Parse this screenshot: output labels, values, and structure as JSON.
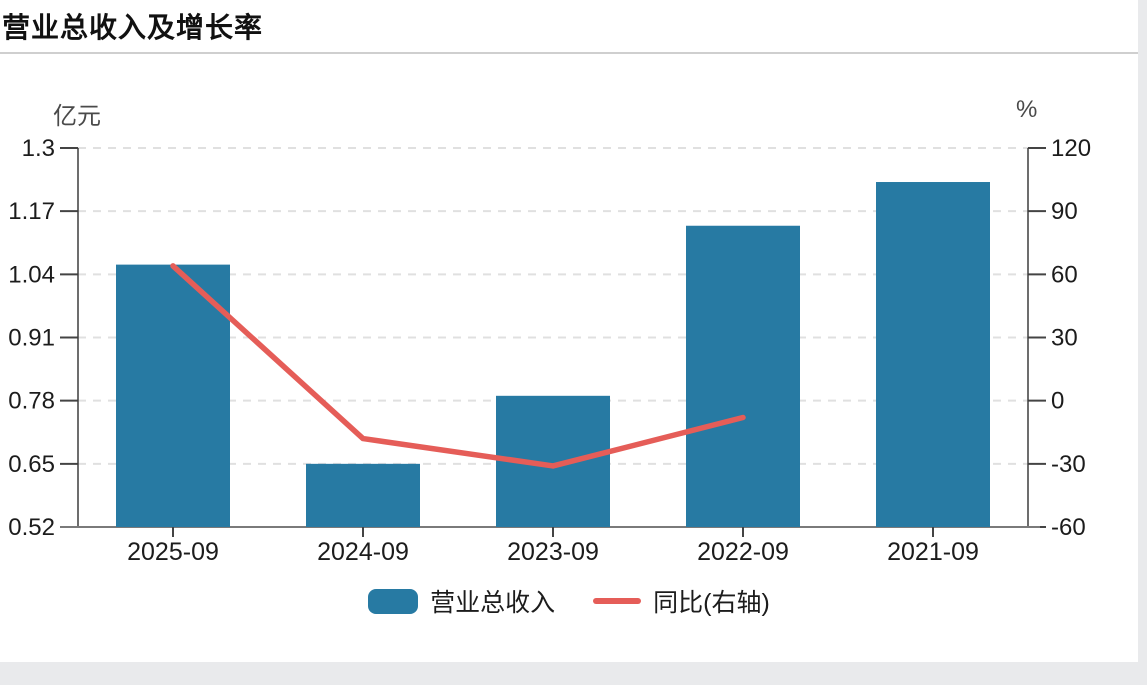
{
  "title": "营业总收入及增长率",
  "chart_data": {
    "type": "bar",
    "subtype": "bar+line dual axis",
    "categories": [
      "2025-09",
      "2024-09",
      "2023-09",
      "2022-09",
      "2021-09"
    ],
    "series": [
      {
        "name": "营业总收入",
        "type": "bar",
        "axis": "left",
        "unit": "亿元",
        "values": [
          1.06,
          0.65,
          0.79,
          1.14,
          1.23
        ],
        "color": "#277aa3"
      },
      {
        "name": "同比(右轴)",
        "type": "line",
        "axis": "right",
        "unit": "%",
        "values": [
          64,
          -18,
          -31,
          -8,
          null
        ],
        "color": "#e55d58"
      }
    ],
    "left_axis": {
      "unit": "亿元",
      "min": 0.52,
      "max": 1.3,
      "tick_labels": [
        "1.3",
        "1.17",
        "1.04",
        "0.91",
        "0.78",
        "0.65",
        "0.52"
      ]
    },
    "right_axis": {
      "unit": "%",
      "min": -60,
      "max": 120,
      "tick_labels": [
        "120",
        "90",
        "60",
        "30",
        "0",
        "-30",
        "-60"
      ]
    },
    "grid": true,
    "legend_position": "bottom"
  },
  "colors": {
    "bar": "#277aa3",
    "line": "#e55d58",
    "grid": "#e0e0e0",
    "side_axis": "#3d3d3d",
    "bottom_axis": "#7a7a7a",
    "tick": "#444444",
    "tick_text": "#1c1c1c",
    "divider": "#cfcfcf",
    "page_edge": "#e9eaec"
  }
}
